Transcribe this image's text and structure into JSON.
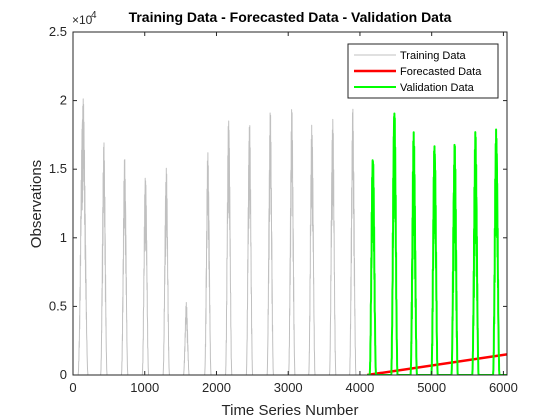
{
  "chart_data": {
    "type": "line",
    "title": "Training Data - Forecasted Data - Validation Data",
    "xlabel": "Time Series Number",
    "ylabel": "Observations",
    "y_exponent_label": "×10",
    "y_exponent_power": "4",
    "xlim": [
      0,
      6050
    ],
    "ylim": [
      0,
      25000
    ],
    "x_ticks": [
      0,
      1000,
      2000,
      3000,
      4000,
      5000,
      6000
    ],
    "x_tick_labels": [
      "0",
      "1000",
      "2000",
      "3000",
      "4000",
      "5000",
      "6000"
    ],
    "y_ticks": [
      0,
      5000,
      10000,
      15000,
      20000,
      25000
    ],
    "y_tick_labels": [
      "0",
      "0.5",
      "1",
      "1.5",
      "2",
      "2.5"
    ],
    "grid": false,
    "legend_position": "top-right",
    "series": [
      {
        "name": "Training Data",
        "color": "#c0c0c0",
        "width": 1,
        "peaks": [
          {
            "center": 140,
            "height": 20400,
            "halfwidth": 70
          },
          {
            "center": 430,
            "height": 17000,
            "halfwidth": 45
          },
          {
            "center": 720,
            "height": 16000,
            "halfwidth": 45
          },
          {
            "center": 1010,
            "height": 15000,
            "halfwidth": 45
          },
          {
            "center": 1300,
            "height": 15400,
            "halfwidth": 45
          },
          {
            "center": 1580,
            "height": 5300,
            "halfwidth": 40
          },
          {
            "center": 1880,
            "height": 16300,
            "halfwidth": 45
          },
          {
            "center": 2170,
            "height": 19200,
            "halfwidth": 45
          },
          {
            "center": 2460,
            "height": 18800,
            "halfwidth": 45
          },
          {
            "center": 2750,
            "height": 19300,
            "halfwidth": 45
          },
          {
            "center": 3050,
            "height": 19500,
            "halfwidth": 45
          },
          {
            "center": 3330,
            "height": 18700,
            "halfwidth": 45
          },
          {
            "center": 3620,
            "height": 19200,
            "halfwidth": 45
          },
          {
            "center": 3900,
            "height": 19500,
            "halfwidth": 45
          }
        ],
        "x_range": [
          0,
          4100
        ]
      },
      {
        "name": "Forecasted Data",
        "color": "#ff0000",
        "width": 2.5,
        "x": [
          4100,
          6050
        ],
        "y": [
          0,
          1500
        ]
      },
      {
        "name": "Validation Data",
        "color": "#00ff00",
        "width": 2,
        "peaks": [
          {
            "center": 4180,
            "height": 16500,
            "halfwidth": 45
          },
          {
            "center": 4480,
            "height": 20000,
            "halfwidth": 45
          },
          {
            "center": 4750,
            "height": 17800,
            "halfwidth": 45
          },
          {
            "center": 5040,
            "height": 17300,
            "halfwidth": 45
          },
          {
            "center": 5320,
            "height": 17000,
            "halfwidth": 45
          },
          {
            "center": 5610,
            "height": 17800,
            "halfwidth": 45
          },
          {
            "center": 5900,
            "height": 18300,
            "halfwidth": 45
          }
        ],
        "x_range": [
          4100,
          6050
        ]
      }
    ]
  }
}
